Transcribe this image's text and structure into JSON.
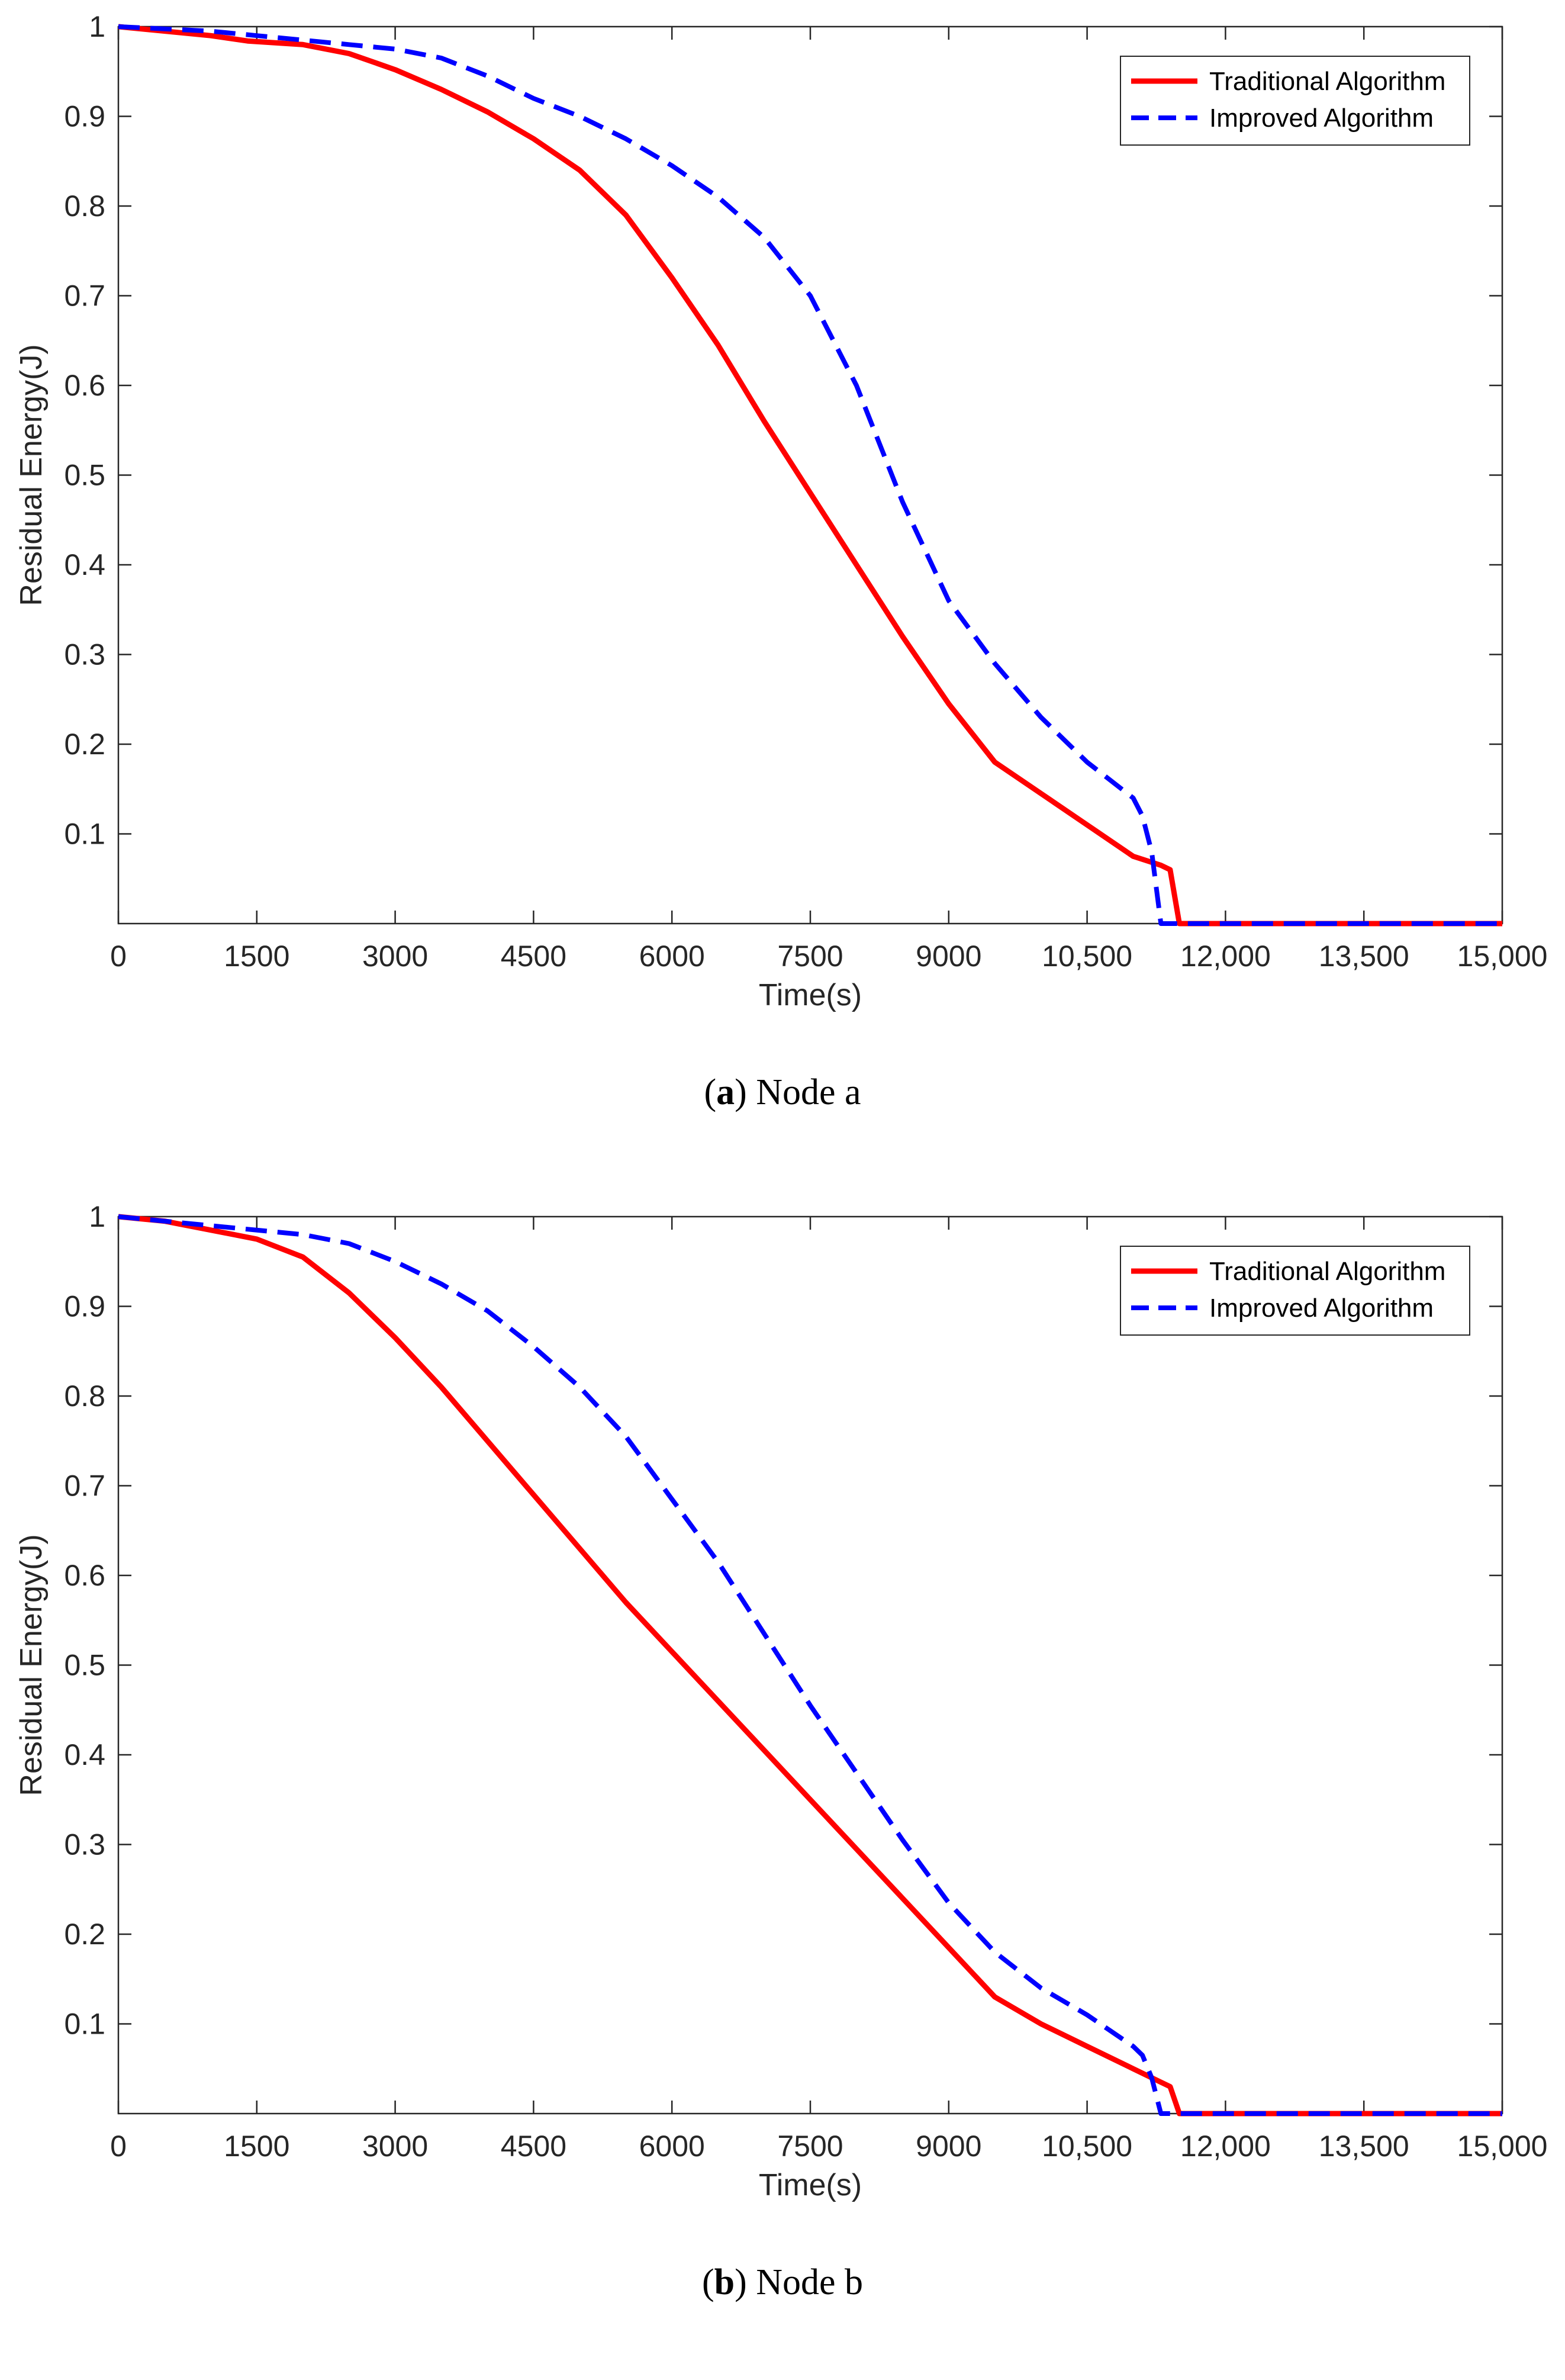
{
  "chart_data": [
    {
      "type": "line",
      "id": "a",
      "caption_letter": "a",
      "caption_text": "Node a",
      "xlabel": "Time(s)",
      "ylabel": "Residual Energy(J)",
      "xlim": [
        0,
        15000
      ],
      "ylim": [
        0,
        1
      ],
      "xticks": [
        0,
        1500,
        3000,
        4500,
        6000,
        7500,
        9000,
        10500,
        12000,
        13500,
        15000
      ],
      "xtick_labels": [
        "0",
        "1500",
        "3000",
        "4500",
        "6000",
        "7500",
        "9000",
        "10,500",
        "12,000",
        "13,500",
        "15,000"
      ],
      "yticks": [
        0.1,
        0.2,
        0.3,
        0.4,
        0.5,
        0.6,
        0.7,
        0.8,
        0.9,
        1
      ],
      "ytick_labels": [
        "0.1",
        "0.2",
        "0.3",
        "0.4",
        "0.5",
        "0.6",
        "0.7",
        "0.8",
        "0.9",
        "1"
      ],
      "legend_position": "top-right",
      "series": [
        {
          "name": "Traditional Algorithm",
          "color": "#ff0000",
          "style": "solid",
          "x": [
            0,
            1000,
            1400,
            2000,
            2500,
            3000,
            3500,
            4000,
            4500,
            5000,
            5500,
            6000,
            6500,
            7000,
            7500,
            8000,
            8500,
            9000,
            9500,
            10000,
            10500,
            11000,
            11300,
            11400,
            11500,
            12000,
            13500,
            15000
          ],
          "y": [
            1.0,
            0.99,
            0.984,
            0.98,
            0.97,
            0.952,
            0.93,
            0.905,
            0.875,
            0.84,
            0.79,
            0.72,
            0.645,
            0.56,
            0.48,
            0.4,
            0.32,
            0.245,
            0.18,
            0.145,
            0.11,
            0.075,
            0.065,
            0.06,
            0.0,
            0.0,
            0.0,
            0.0
          ]
        },
        {
          "name": "Improved Algorithm",
          "color": "#0000ff",
          "style": "dashed",
          "x": [
            0,
            1000,
            1500,
            2000,
            2500,
            3000,
            3500,
            4000,
            4500,
            5000,
            5500,
            6000,
            6500,
            7000,
            7500,
            8000,
            8500,
            9000,
            9500,
            10000,
            10500,
            11000,
            11100,
            11200,
            11300,
            11500,
            12000,
            13500,
            15000
          ],
          "y": [
            1.0,
            0.995,
            0.99,
            0.985,
            0.98,
            0.975,
            0.965,
            0.945,
            0.92,
            0.9,
            0.875,
            0.845,
            0.81,
            0.765,
            0.7,
            0.6,
            0.47,
            0.36,
            0.29,
            0.23,
            0.18,
            0.14,
            0.12,
            0.08,
            0.0,
            0.0,
            0.0,
            0.0,
            0.0
          ]
        }
      ]
    },
    {
      "type": "line",
      "id": "b",
      "caption_letter": "b",
      "caption_text": "Node b",
      "xlabel": "Time(s)",
      "ylabel": "Residual Energy(J)",
      "xlim": [
        0,
        15000
      ],
      "ylim": [
        0,
        1
      ],
      "xticks": [
        0,
        1500,
        3000,
        4500,
        6000,
        7500,
        9000,
        10500,
        12000,
        13500,
        15000
      ],
      "xtick_labels": [
        "0",
        "1500",
        "3000",
        "4500",
        "6000",
        "7500",
        "9000",
        "10,500",
        "12,000",
        "13,500",
        "15,000"
      ],
      "yticks": [
        0.1,
        0.2,
        0.3,
        0.4,
        0.5,
        0.6,
        0.7,
        0.8,
        0.9,
        1
      ],
      "ytick_labels": [
        "0.1",
        "0.2",
        "0.3",
        "0.4",
        "0.5",
        "0.6",
        "0.7",
        "0.8",
        "0.9",
        "1"
      ],
      "legend_position": "top-right",
      "series": [
        {
          "name": "Traditional Algorithm",
          "color": "#ff0000",
          "style": "solid",
          "x": [
            0,
            500,
            1000,
            1500,
            2000,
            2500,
            3000,
            3500,
            4000,
            4500,
            5000,
            5500,
            6000,
            6500,
            7000,
            7500,
            8000,
            8500,
            9000,
            9500,
            10000,
            10500,
            11000,
            11300,
            11400,
            11500,
            12000,
            13500,
            15000
          ],
          "y": [
            1.0,
            0.995,
            0.985,
            0.975,
            0.955,
            0.915,
            0.865,
            0.81,
            0.75,
            0.69,
            0.63,
            0.57,
            0.515,
            0.46,
            0.405,
            0.35,
            0.295,
            0.24,
            0.185,
            0.13,
            0.1,
            0.075,
            0.05,
            0.035,
            0.03,
            0.0,
            0.0,
            0.0,
            0.0
          ]
        },
        {
          "name": "Improved Algorithm",
          "color": "#0000ff",
          "style": "dashed",
          "x": [
            0,
            1000,
            2000,
            2500,
            3000,
            3500,
            4000,
            4500,
            5000,
            5500,
            6000,
            6500,
            7000,
            7500,
            8000,
            8500,
            9000,
            9500,
            10000,
            10500,
            11000,
            11100,
            11200,
            11300,
            11500,
            12000,
            13500,
            15000
          ],
          "y": [
            1.0,
            0.99,
            0.98,
            0.97,
            0.95,
            0.925,
            0.895,
            0.855,
            0.81,
            0.755,
            0.685,
            0.615,
            0.535,
            0.455,
            0.38,
            0.305,
            0.235,
            0.18,
            0.14,
            0.11,
            0.075,
            0.065,
            0.04,
            0.0,
            0.0,
            0.0,
            0.0,
            0.0
          ]
        }
      ]
    }
  ]
}
